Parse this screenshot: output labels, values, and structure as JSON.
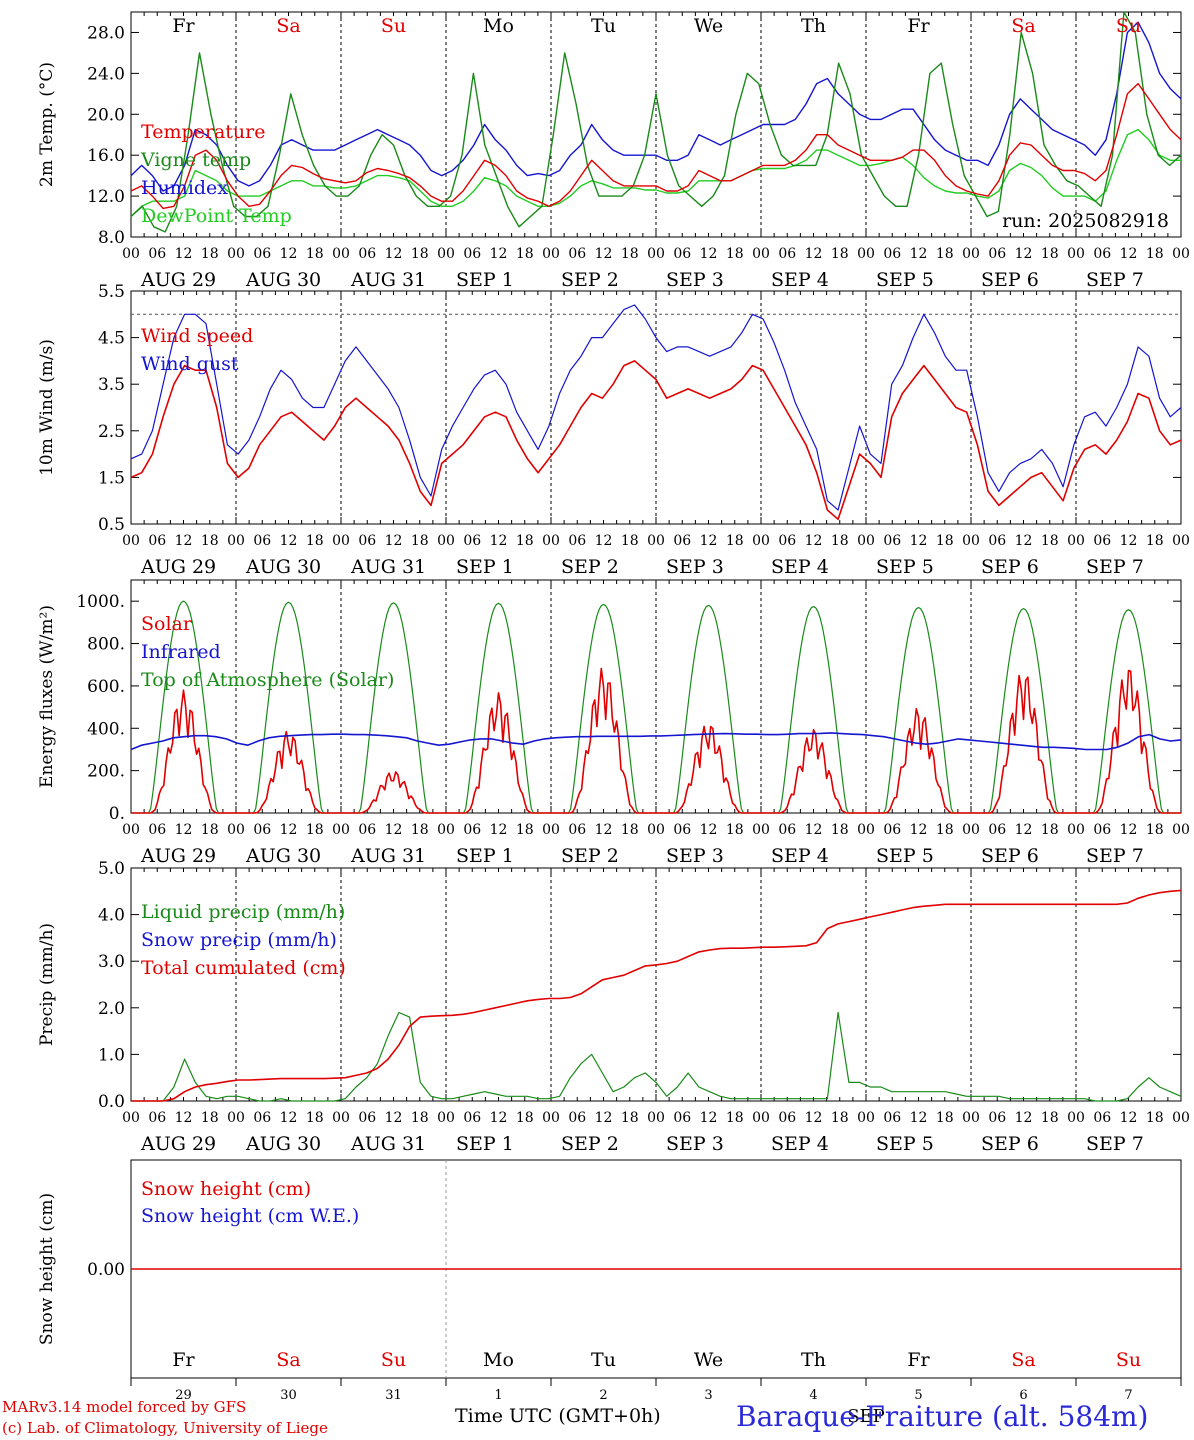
{
  "colors": {
    "temperature": "#e00000",
    "vigne": "#1a8a1a",
    "humidex": "#1515d0",
    "dewpoint": "#22cc22",
    "weekend": "#e00000",
    "weekday": "#000000"
  },
  "day_names": [
    "Fr",
    "Sa",
    "Su",
    "Mo",
    "Tu",
    "We",
    "Th",
    "Fr",
    "Sa",
    "Su"
  ],
  "weekend": [
    false,
    true,
    true,
    false,
    false,
    false,
    false,
    false,
    true,
    true
  ],
  "date_labels": [
    "AUG 29",
    "AUG 30",
    "AUG 31",
    "SEP  1",
    "SEP  2",
    "SEP  3",
    "SEP  4",
    "SEP  5",
    "SEP  6",
    "SEP  7"
  ],
  "hour_ticks": [
    "00",
    "06",
    "12",
    "18"
  ],
  "hour_end": "00",
  "day_numbers": [
    "29",
    "30",
    "31",
    "1",
    "2",
    "3",
    "4",
    "5",
    "6",
    "7"
  ],
  "month_label": "SEP",
  "footer": {
    "credit_line1": "MARv3.14 model forced by GFS",
    "credit_line2": "(c) Lab. of Climatology, University of Liege",
    "time_title": "Time UTC (GMT+0h)",
    "station": "Baraque-Fraiture (alt. 584m)"
  },
  "chart_data": [
    {
      "type": "line",
      "ylabel": "2m Temp. (°C)",
      "ylim": [
        8,
        30
      ],
      "yticks": [
        "8.0",
        "12.0",
        "16.0",
        "20.0",
        "24.0",
        "28.0"
      ],
      "run_label": "run: 2025082918",
      "x_unit": "days since 29 Aug 00 UTC (3-hourly)",
      "series": [
        {
          "name": "Temperature",
          "color": "#e00000",
          "values": [
            12.5,
            13,
            12,
            10.8,
            11,
            13,
            16,
            16.5,
            15.5,
            13.5,
            12,
            11,
            11.2,
            12.5,
            14,
            15,
            14.8,
            14.2,
            13.7,
            13.5,
            13.3,
            13.5,
            14.3,
            14.7,
            14.5,
            14.2,
            13.8,
            13,
            12,
            11.5,
            11.5,
            12.5,
            14,
            15.5,
            15,
            14,
            12.5,
            11.8,
            11.5,
            11,
            11.5,
            12.5,
            14,
            15.5,
            14.5,
            13.5,
            13,
            13,
            13,
            13,
            12.5,
            12.5,
            13,
            14.5,
            14,
            13.5,
            13.5,
            14,
            14.5,
            15,
            15,
            15,
            15.5,
            16.5,
            18,
            18,
            17,
            16.5,
            16,
            15.5,
            15.5,
            15.5,
            15.8,
            16.5,
            16.5,
            15.5,
            14,
            13,
            12.5,
            12.2,
            12,
            13.5,
            16,
            17.2,
            17,
            16,
            15,
            14.5,
            14.5,
            14.2,
            13.5,
            14.5,
            18,
            22,
            23,
            21.5,
            20,
            18.5,
            17.5
          ]
        },
        {
          "name": "Vigne temp",
          "color": "#1a8a1a",
          "values": [
            10,
            11,
            9,
            8.5,
            11,
            18,
            26,
            20,
            15,
            11,
            10,
            10,
            11,
            16,
            22,
            18,
            15,
            13,
            12,
            12,
            13,
            16,
            18,
            17,
            14,
            12,
            11,
            11,
            12,
            16,
            24,
            17,
            14,
            11,
            9,
            10,
            11,
            18,
            26,
            21,
            15,
            12,
            12,
            12,
            13,
            16,
            22,
            16,
            13,
            12,
            11,
            12,
            14,
            20,
            24,
            23,
            19,
            16,
            15,
            15,
            15,
            18,
            25,
            22,
            16,
            14,
            12,
            11,
            11,
            16,
            24,
            25,
            19,
            14,
            12,
            10,
            10.5,
            18,
            28,
            24,
            17,
            15,
            13.5,
            13,
            12,
            11,
            16,
            30,
            28,
            20,
            16,
            15,
            16
          ]
        },
        {
          "name": "Humidex",
          "color": "#1515d0",
          "values": [
            14,
            15,
            14,
            12.5,
            13,
            15,
            18.5,
            18,
            17,
            15,
            13.5,
            13,
            13.5,
            15,
            17,
            17.5,
            17,
            16.5,
            16.5,
            16.5,
            17,
            17.5,
            18,
            18.5,
            18,
            17.5,
            17,
            16,
            14.5,
            14,
            14.5,
            15.5,
            17,
            19,
            17.5,
            16.5,
            15,
            14,
            14.2,
            14,
            14.5,
            16,
            17,
            19,
            17.5,
            16.5,
            16,
            16,
            16,
            16,
            15.5,
            15.5,
            16,
            18,
            17.5,
            17,
            17.5,
            18,
            18.5,
            19,
            19,
            19,
            19.5,
            21,
            23,
            23.5,
            22,
            21,
            20,
            19.5,
            19.5,
            20,
            20.5,
            20.5,
            19,
            17.5,
            16.5,
            16,
            15.5,
            15.5,
            15,
            17,
            20,
            21.5,
            20.5,
            19.5,
            18.5,
            18,
            17.5,
            17,
            16,
            17.5,
            22,
            28,
            29,
            27,
            24,
            22.5,
            21.5
          ]
        },
        {
          "name": "DewPoint Temp",
          "color": "#22cc22",
          "values": [
            10,
            11,
            11.5,
            11.5,
            11.5,
            12,
            14.5,
            14,
            13.5,
            12.5,
            12,
            12,
            12,
            12.5,
            13,
            13.5,
            13.5,
            13,
            13,
            12.8,
            12.8,
            13,
            13.5,
            14,
            14,
            13.8,
            13.5,
            12.5,
            11.5,
            11,
            11,
            11.5,
            12.5,
            13.8,
            13.5,
            13,
            12,
            11.5,
            11,
            11,
            11.3,
            12,
            13,
            13.5,
            13.2,
            12.8,
            12.8,
            12.8,
            12.6,
            12.6,
            12.3,
            12.3,
            12.5,
            13.5,
            13.5,
            13.5,
            13.5,
            14,
            14.5,
            14.7,
            14.7,
            14.7,
            15,
            15.5,
            16.5,
            16.5,
            16,
            15.5,
            15,
            15,
            15.2,
            15.5,
            15.8,
            15,
            13.8,
            13,
            12.5,
            12.3,
            12.3,
            12,
            11.8,
            12.5,
            14.5,
            15.2,
            14.8,
            14,
            12.8,
            12,
            12,
            12,
            11.5,
            12.5,
            15.5,
            18,
            18.5,
            17.5,
            16,
            15.5,
            15.5
          ]
        }
      ]
    },
    {
      "type": "line",
      "ylabel": "10m Wind (m/s)",
      "ylim": [
        0.5,
        5.5
      ],
      "yticks": [
        "0.5",
        "1.5",
        "2.5",
        "3.5",
        "4.5",
        "5.5"
      ],
      "reference_line": 5.0,
      "x_unit": "days since 29 Aug 00 UTC (3-hourly)",
      "series": [
        {
          "name": "Wind speed",
          "color": "#e00000",
          "values": [
            1.5,
            1.6,
            2,
            2.8,
            3.5,
            3.9,
            3.8,
            3.8,
            3,
            1.8,
            1.5,
            1.7,
            2.2,
            2.5,
            2.8,
            2.9,
            2.7,
            2.5,
            2.3,
            2.6,
            3,
            3.2,
            3,
            2.8,
            2.6,
            2.3,
            1.8,
            1.2,
            0.9,
            1.8,
            2,
            2.2,
            2.5,
            2.8,
            2.9,
            2.8,
            2.3,
            1.9,
            1.6,
            1.9,
            2.2,
            2.6,
            3,
            3.3,
            3.2,
            3.5,
            3.9,
            4,
            3.8,
            3.6,
            3.2,
            3.3,
            3.4,
            3.3,
            3.2,
            3.3,
            3.4,
            3.6,
            3.9,
            3.8,
            3.4,
            3,
            2.6,
            2.2,
            1.6,
            0.8,
            0.6,
            1.3,
            2,
            1.8,
            1.5,
            2.8,
            3.3,
            3.6,
            3.9,
            3.6,
            3.3,
            3.0,
            2.9,
            2.2,
            1.2,
            0.9,
            1.1,
            1.3,
            1.5,
            1.6,
            1.3,
            1,
            1.7,
            2.1,
            2.2,
            2.0,
            2.3,
            2.7,
            3.3,
            3.2,
            2.5,
            2.2,
            2.3
          ]
        },
        {
          "name": "Wind gust",
          "color": "#1515d0",
          "values": [
            1.9,
            2,
            2.5,
            3.5,
            4.5,
            5,
            5,
            4.8,
            3.5,
            2.2,
            2,
            2.3,
            2.8,
            3.4,
            3.8,
            3.6,
            3.2,
            3,
            3,
            3.5,
            4,
            4.3,
            4,
            3.7,
            3.4,
            3,
            2.3,
            1.5,
            1.1,
            2.1,
            2.6,
            3.0,
            3.4,
            3.7,
            3.8,
            3.5,
            2.9,
            2.5,
            2.1,
            2.6,
            3.3,
            3.8,
            4.1,
            4.5,
            4.5,
            4.8,
            5.1,
            5.2,
            4.9,
            4.5,
            4.2,
            4.3,
            4.3,
            4.2,
            4.1,
            4.2,
            4.3,
            4.6,
            5,
            4.9,
            4.4,
            3.8,
            3.1,
            2.6,
            2.1,
            1.0,
            0.8,
            1.7,
            2.6,
            2.0,
            1.8,
            3.5,
            3.9,
            4.5,
            5.0,
            4.6,
            4.1,
            3.8,
            3.8,
            2.8,
            1.6,
            1.2,
            1.6,
            1.8,
            1.9,
            2.1,
            1.8,
            1.3,
            2.2,
            2.8,
            2.9,
            2.6,
            3.0,
            3.5,
            4.3,
            4.1,
            3.2,
            2.8,
            3.0
          ]
        }
      ]
    },
    {
      "type": "line",
      "ylabel": "Energy fluxes (W/m²)",
      "ylim": [
        0,
        1100
      ],
      "yticks": [
        "0.",
        "200.",
        "400.",
        "600.",
        "800.",
        "1000."
      ],
      "x_unit": "days since 29 Aug 00 UTC (3-hourly)",
      "series": [
        {
          "name": "Solar",
          "color": "#e00000",
          "day_peaks": [
            580,
            390,
            200,
            570,
            690,
            430,
            400,
            500,
            680,
            700
          ]
        },
        {
          "name": "Infrared",
          "color": "#1515d0",
          "values": [
            300,
            320,
            330,
            340,
            355,
            360,
            365,
            365,
            360,
            350,
            330,
            320,
            340,
            355,
            362,
            365,
            368,
            370,
            370,
            372,
            372,
            370,
            370,
            368,
            365,
            360,
            355,
            340,
            330,
            320,
            325,
            335,
            345,
            350,
            350,
            340,
            330,
            325,
            340,
            350,
            355,
            358,
            360,
            360,
            362,
            362,
            362,
            362,
            362,
            364,
            364,
            366,
            368,
            370,
            372,
            374,
            375,
            374,
            372,
            372,
            370,
            370,
            372,
            375,
            375,
            376,
            378,
            375,
            372,
            370,
            365,
            360,
            350,
            340,
            330,
            325,
            330,
            340,
            350,
            345,
            340,
            335,
            330,
            325,
            320,
            315,
            310,
            310,
            308,
            305,
            300,
            300,
            300,
            310,
            330,
            360,
            370,
            350,
            340,
            345
          ]
        },
        {
          "name": "Top of Atmosphere (Solar)",
          "color": "#1a8a1a",
          "day_peaks": [
            1000,
            995,
            992,
            990,
            985,
            980,
            975,
            970,
            965,
            960
          ]
        }
      ]
    },
    {
      "type": "line",
      "ylabel": "Precip (mm/h)",
      "ylim": [
        0,
        5
      ],
      "yticks": [
        "0.0",
        "1.0",
        "2.0",
        "3.0",
        "4.0",
        "5.0"
      ],
      "x_unit": "days since 29 Aug 00 UTC (3-hourly)",
      "series": [
        {
          "name": "Liquid precip (mm/h)",
          "color": "#1a8a1a",
          "values": [
            0,
            0,
            0,
            0,
            0.3,
            0.9,
            0.4,
            0.1,
            0.05,
            0.1,
            0.1,
            0.05,
            0,
            0,
            0.05,
            0,
            0,
            0,
            0,
            0,
            0.05,
            0.3,
            0.5,
            0.8,
            1.4,
            1.9,
            1.8,
            0.4,
            0.1,
            0.05,
            0.05,
            0.1,
            0.15,
            0.2,
            0.15,
            0.1,
            0.1,
            0.1,
            0.05,
            0.05,
            0.1,
            0.5,
            0.8,
            1.0,
            0.6,
            0.2,
            0.3,
            0.5,
            0.6,
            0.4,
            0.1,
            0.3,
            0.6,
            0.3,
            0.2,
            0.1,
            0.05,
            0.05,
            0.05,
            0.05,
            0.05,
            0.05,
            0.05,
            0.05,
            0.05,
            0.05,
            1.9,
            0.4,
            0.4,
            0.3,
            0.3,
            0.2,
            0.2,
            0.2,
            0.2,
            0.2,
            0.2,
            0.15,
            0.1,
            0.1,
            0.1,
            0.1,
            0.05,
            0.05,
            0.05,
            0.05,
            0.05,
            0.05,
            0.05,
            0.05,
            0,
            0,
            0,
            0.05,
            0.3,
            0.5,
            0.3,
            0.2,
            0.1
          ]
        },
        {
          "name": "Snow precip (mm/h)",
          "color": "#1515d0",
          "values": []
        },
        {
          "name": "Total cumulated (cm)",
          "color": "#e00000",
          "values": [
            0,
            0,
            0,
            0,
            0.05,
            0.2,
            0.3,
            0.35,
            0.38,
            0.42,
            0.45,
            0.45,
            0.46,
            0.47,
            0.48,
            0.48,
            0.48,
            0.48,
            0.48,
            0.49,
            0.5,
            0.55,
            0.6,
            0.7,
            0.9,
            1.2,
            1.6,
            1.8,
            1.82,
            1.83,
            1.84,
            1.86,
            1.9,
            1.95,
            2.0,
            2.05,
            2.1,
            2.15,
            2.18,
            2.2,
            2.2,
            2.22,
            2.3,
            2.45,
            2.6,
            2.65,
            2.7,
            2.8,
            2.9,
            2.92,
            2.95,
            3.0,
            3.1,
            3.2,
            3.24,
            3.27,
            3.28,
            3.28,
            3.29,
            3.3,
            3.3,
            3.31,
            3.32,
            3.33,
            3.4,
            3.7,
            3.8,
            3.85,
            3.9,
            3.95,
            4.0,
            4.05,
            4.1,
            4.15,
            4.18,
            4.2,
            4.22,
            4.22,
            4.22,
            4.22,
            4.22,
            4.22,
            4.22,
            4.22,
            4.22,
            4.22,
            4.22,
            4.22,
            4.22,
            4.22,
            4.22,
            4.22,
            4.22,
            4.25,
            4.35,
            4.42,
            4.47,
            4.5,
            4.52
          ]
        }
      ]
    },
    {
      "type": "line",
      "ylabel": "Snow height (cm)",
      "ylim": [
        -1,
        1
      ],
      "yticks": [
        "0.00"
      ],
      "x_unit": "days since 29 Aug 00 UTC (3-hourly)",
      "series": [
        {
          "name": "Snow height (cm)",
          "color": "#e00000",
          "values": [
            0,
            0
          ]
        },
        {
          "name": "Snow height (cm W.E.)",
          "color": "#1515d0",
          "values": []
        }
      ]
    }
  ]
}
